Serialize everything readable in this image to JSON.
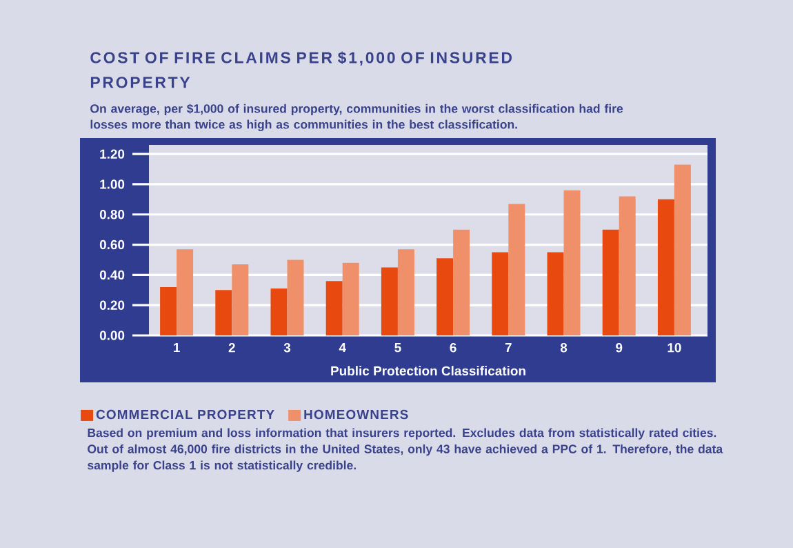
{
  "chart_data": {
    "type": "bar",
    "title": "COST OF FIRE CLAIMS PER $1,000 OF INSURED PROPERTY",
    "subtitle": "On average, per $1,000 of insured property, communities in the worst classification had fire losses more than twice as high as communities in the best classification.",
    "xlabel": "Public Protection Classification",
    "categories": [
      "1",
      "2",
      "3",
      "4",
      "5",
      "6",
      "7",
      "8",
      "9",
      "10"
    ],
    "series": [
      {
        "name": "COMMERCIAL PROPERTY",
        "color": "#e8490f",
        "values": [
          0.32,
          0.3,
          0.31,
          0.36,
          0.45,
          0.51,
          0.55,
          0.55,
          0.7,
          0.9
        ]
      },
      {
        "name": "HOMEOWNERS",
        "color": "#f0906a",
        "values": [
          0.57,
          0.47,
          0.5,
          0.48,
          0.57,
          0.7,
          0.87,
          0.96,
          0.92,
          1.13
        ]
      }
    ],
    "ylim": [
      0,
      1.26
    ],
    "yticks": [
      {
        "value": 0,
        "label": "0.00"
      },
      {
        "value": 0.2,
        "label": "0.20"
      },
      {
        "value": 0.4,
        "label": "0.40"
      },
      {
        "value": 0.6,
        "label": "0.60"
      },
      {
        "value": 0.8,
        "label": "0.80"
      },
      {
        "value": 1.0,
        "label": "1.00"
      },
      {
        "value": 1.2,
        "label": "1.20"
      }
    ],
    "grid": "y",
    "legend": "bottom",
    "annotations": [
      "Based on premium and loss information that insurers reported. Excludes data from statistically rated cities. Out of almost 46,000 fire districts in the United States, only 43 have achieved a PPC of 1. Therefore, the data sample for Class 1 is not statistically credible."
    ]
  }
}
